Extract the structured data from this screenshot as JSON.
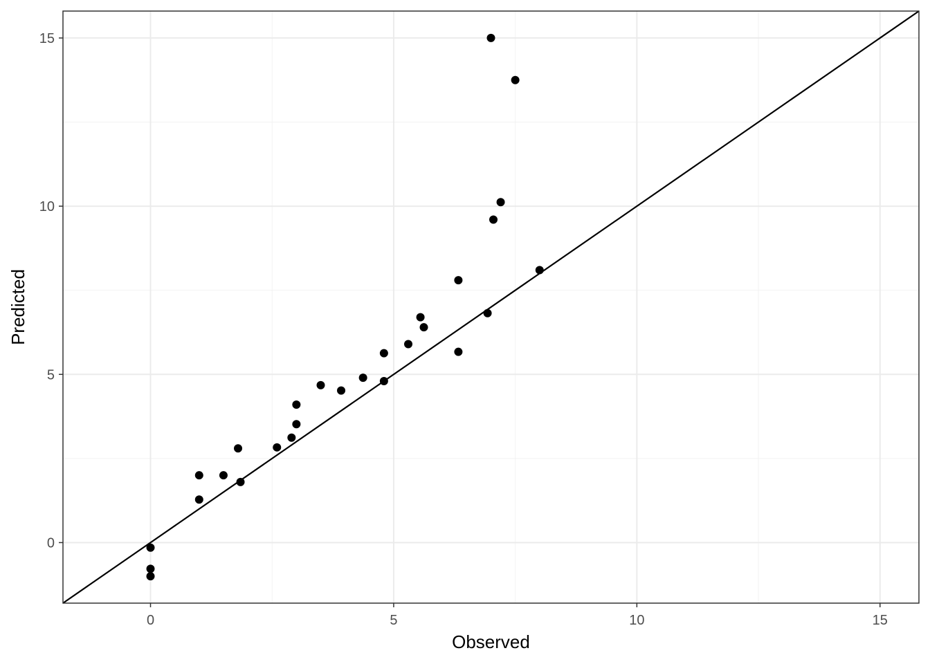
{
  "chart_data": {
    "type": "scatter",
    "title": "",
    "xlabel": "Observed",
    "ylabel": "Predicted",
    "xlim": [
      -1.8,
      15.8
    ],
    "ylim": [
      -1.8,
      15.8
    ],
    "x_ticks": [
      0,
      5,
      10,
      15
    ],
    "y_ticks": [
      0,
      5,
      10,
      15
    ],
    "x_tick_labels": [
      "0",
      "5",
      "10",
      "15"
    ],
    "y_tick_labels": [
      "0",
      "5",
      "10",
      "15"
    ],
    "grid": true,
    "reference_line": {
      "slope": 1,
      "intercept": 0
    },
    "series": [
      {
        "points": [
          {
            "x": 0.0,
            "y": -0.15
          },
          {
            "x": 0.0,
            "y": -0.78
          },
          {
            "x": 0.0,
            "y": -1.0
          },
          {
            "x": 1.0,
            "y": 2.0
          },
          {
            "x": 1.0,
            "y": 1.28
          },
          {
            "x": 1.5,
            "y": 2.0
          },
          {
            "x": 1.8,
            "y": 2.8
          },
          {
            "x": 1.85,
            "y": 1.8
          },
          {
            "x": 2.6,
            "y": 2.83
          },
          {
            "x": 2.9,
            "y": 3.12
          },
          {
            "x": 3.0,
            "y": 4.1
          },
          {
            "x": 3.0,
            "y": 3.52
          },
          {
            "x": 3.5,
            "y": 4.68
          },
          {
            "x": 3.92,
            "y": 4.52
          },
          {
            "x": 4.37,
            "y": 4.9
          },
          {
            "x": 4.8,
            "y": 5.63
          },
          {
            "x": 4.8,
            "y": 4.8
          },
          {
            "x": 5.3,
            "y": 5.9
          },
          {
            "x": 5.55,
            "y": 6.7
          },
          {
            "x": 5.62,
            "y": 6.4
          },
          {
            "x": 6.33,
            "y": 7.8
          },
          {
            "x": 6.33,
            "y": 5.67
          },
          {
            "x": 6.93,
            "y": 6.82
          },
          {
            "x": 7.0,
            "y": 15.0
          },
          {
            "x": 7.05,
            "y": 9.6
          },
          {
            "x": 7.2,
            "y": 10.12
          },
          {
            "x": 7.5,
            "y": 13.75
          },
          {
            "x": 8.0,
            "y": 8.1
          }
        ]
      }
    ]
  }
}
